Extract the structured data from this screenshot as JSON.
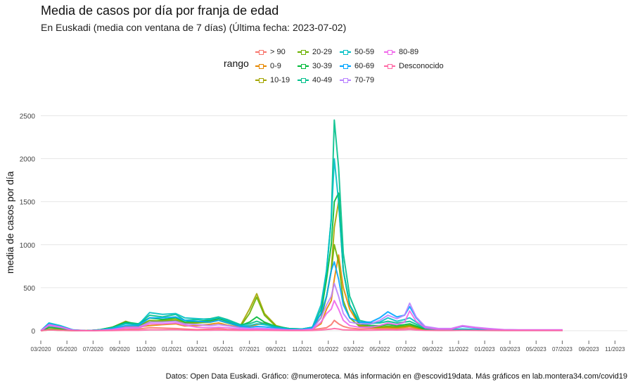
{
  "chart_data": {
    "type": "line",
    "title": "Media de casos por día por franja de edad",
    "subtitle": "En Euskadi (media con ventana de 7 días)  (Última fecha: 2023-07-02)",
    "xlabel": "",
    "ylabel": "media de casos por día",
    "caption": "Datos: Open Data Euskadi. Gráfico: @numeroteca. Más información en @escovid19data.  Más gráficos en lab.montera34.com/covid19",
    "legend_title": "rango",
    "legend_position": "top",
    "grid": true,
    "ylim": [
      0,
      2700
    ],
    "yticks": [
      0,
      500,
      1000,
      1500,
      2000,
      2500
    ],
    "xlim": [
      "2020-03-01",
      "2023-11-30"
    ],
    "xticks": [
      "03/2020",
      "05/2020",
      "07/2020",
      "09/2020",
      "11/2020",
      "01/2021",
      "03/2021",
      "05/2021",
      "07/2021",
      "09/2021",
      "11/2021",
      "01/2022",
      "03/2022",
      "05/2022",
      "07/2022",
      "09/2022",
      "11/2022",
      "01/2023",
      "03/2023",
      "05/2023",
      "07/2023",
      "09/2023",
      "11/2023"
    ],
    "x": [
      "2020-03-01",
      "2020-03-20",
      "2020-04-15",
      "2020-05-15",
      "2020-06-15",
      "2020-07-15",
      "2020-08-15",
      "2020-09-15",
      "2020-10-15",
      "2020-11-10",
      "2020-12-10",
      "2021-01-10",
      "2021-01-31",
      "2021-03-01",
      "2021-04-01",
      "2021-04-20",
      "2021-05-10",
      "2021-06-10",
      "2021-07-01",
      "2021-07-18",
      "2021-08-05",
      "2021-09-01",
      "2021-10-01",
      "2021-11-01",
      "2021-11-25",
      "2021-12-15",
      "2021-12-28",
      "2022-01-08",
      "2022-01-15",
      "2022-01-25",
      "2022-02-05",
      "2022-02-20",
      "2022-03-15",
      "2022-04-10",
      "2022-05-01",
      "2022-05-20",
      "2022-06-10",
      "2022-06-28",
      "2022-07-10",
      "2022-07-25",
      "2022-08-15",
      "2022-09-15",
      "2022-10-15",
      "2022-11-10",
      "2022-12-10",
      "2023-01-10",
      "2023-02-15",
      "2023-03-20",
      "2023-04-20",
      "2023-05-20",
      "2023-06-15",
      "2023-07-02"
    ],
    "series": [
      {
        "name": "> 90",
        "color": "#F8766D",
        "values": [
          0,
          40,
          25,
          8,
          3,
          4,
          8,
          15,
          20,
          35,
          30,
          25,
          20,
          12,
          18,
          25,
          15,
          10,
          8,
          10,
          12,
          10,
          8,
          10,
          15,
          25,
          35,
          70,
          120,
          80,
          50,
          30,
          20,
          25,
          20,
          20,
          18,
          25,
          30,
          20,
          10,
          8,
          8,
          10,
          10,
          8,
          6,
          5,
          5,
          5,
          5,
          5
        ]
      },
      {
        "name": "0-9",
        "color": "#E58700",
        "values": [
          0,
          15,
          10,
          2,
          0,
          3,
          15,
          50,
          45,
          60,
          70,
          80,
          55,
          60,
          75,
          90,
          65,
          40,
          50,
          70,
          90,
          30,
          15,
          12,
          20,
          80,
          250,
          350,
          600,
          880,
          500,
          250,
          60,
          40,
          35,
          35,
          30,
          40,
          50,
          30,
          10,
          8,
          8,
          10,
          8,
          6,
          5,
          4,
          4,
          4,
          4,
          4
        ]
      },
      {
        "name": "10-19",
        "color": "#A3A500",
        "values": [
          0,
          10,
          5,
          1,
          0,
          10,
          40,
          110,
          60,
          100,
          120,
          130,
          90,
          100,
          110,
          140,
          120,
          60,
          250,
          430,
          200,
          60,
          20,
          15,
          30,
          150,
          400,
          700,
          1200,
          1500,
          700,
          300,
          70,
          40,
          40,
          45,
          40,
          50,
          60,
          40,
          15,
          10,
          8,
          10,
          8,
          6,
          5,
          4,
          4,
          4,
          4,
          4
        ]
      },
      {
        "name": "20-29",
        "color": "#6BB100",
        "values": [
          0,
          20,
          15,
          3,
          0,
          10,
          40,
          90,
          60,
          120,
          110,
          120,
          80,
          90,
          100,
          120,
          90,
          50,
          200,
          390,
          180,
          50,
          20,
          15,
          30,
          150,
          400,
          700,
          1000,
          800,
          350,
          150,
          50,
          40,
          45,
          50,
          45,
          55,
          65,
          45,
          15,
          10,
          8,
          10,
          8,
          6,
          5,
          4,
          4,
          4,
          4,
          4
        ]
      },
      {
        "name": "30-39",
        "color": "#00BA38",
        "values": [
          0,
          40,
          30,
          5,
          0,
          10,
          40,
          100,
          80,
          150,
          130,
          150,
          100,
          110,
          120,
          140,
          110,
          60,
          100,
          160,
          100,
          50,
          25,
          20,
          40,
          200,
          600,
          1000,
          1500,
          1600,
          700,
          300,
          80,
          60,
          60,
          70,
          60,
          70,
          80,
          55,
          20,
          12,
          10,
          12,
          10,
          8,
          6,
          5,
          5,
          5,
          5,
          5
        ]
      },
      {
        "name": "40-49",
        "color": "#00C08B",
        "values": [
          0,
          60,
          40,
          8,
          0,
          10,
          35,
          90,
          80,
          180,
          160,
          190,
          120,
          130,
          140,
          160,
          130,
          70,
          80,
          110,
          80,
          50,
          25,
          20,
          40,
          250,
          700,
          1300,
          2450,
          1900,
          900,
          400,
          120,
          90,
          90,
          110,
          90,
          100,
          110,
          75,
          25,
          15,
          12,
          15,
          12,
          10,
          8,
          6,
          6,
          6,
          6,
          6
        ]
      },
      {
        "name": "50-59",
        "color": "#00BFC4",
        "values": [
          0,
          90,
          60,
          10,
          0,
          10,
          30,
          80,
          70,
          210,
          190,
          200,
          150,
          140,
          130,
          150,
          120,
          60,
          60,
          80,
          70,
          40,
          20,
          20,
          40,
          300,
          700,
          1300,
          2000,
          1500,
          700,
          300,
          100,
          80,
          100,
          150,
          110,
          130,
          150,
          100,
          30,
          18,
          15,
          20,
          15,
          12,
          8,
          6,
          6,
          6,
          6,
          6
        ]
      },
      {
        "name": "60-69",
        "color": "#00A5FF",
        "values": [
          0,
          80,
          50,
          8,
          0,
          5,
          20,
          60,
          60,
          150,
          150,
          160,
          120,
          110,
          100,
          120,
          95,
          50,
          40,
          50,
          45,
          30,
          15,
          15,
          30,
          200,
          400,
          700,
          800,
          600,
          300,
          150,
          100,
          100,
          150,
          220,
          160,
          180,
          280,
          150,
          40,
          20,
          20,
          50,
          30,
          20,
          10,
          8,
          8,
          8,
          8,
          8
        ]
      },
      {
        "name": "70-79",
        "color": "#B983FF",
        "values": [
          0,
          60,
          40,
          5,
          0,
          5,
          15,
          40,
          40,
          100,
          100,
          110,
          80,
          70,
          60,
          70,
          60,
          35,
          25,
          30,
          25,
          20,
          10,
          10,
          20,
          150,
          300,
          400,
          550,
          400,
          200,
          100,
          80,
          80,
          120,
          180,
          140,
          180,
          320,
          160,
          50,
          25,
          25,
          60,
          40,
          25,
          12,
          10,
          10,
          10,
          10,
          10
        ]
      },
      {
        "name": "80-89",
        "color": "#F066EA",
        "values": [
          0,
          70,
          45,
          6,
          0,
          4,
          12,
          30,
          30,
          80,
          80,
          90,
          65,
          40,
          35,
          40,
          35,
          20,
          15,
          18,
          15,
          12,
          8,
          8,
          15,
          100,
          200,
          250,
          350,
          250,
          120,
          60,
          40,
          40,
          60,
          90,
          70,
          100,
          230,
          110,
          35,
          18,
          20,
          55,
          35,
          20,
          10,
          8,
          8,
          8,
          8,
          8
        ]
      },
      {
        "name": "Desconocido",
        "color": "#FF67A4",
        "values": [
          0,
          10,
          5,
          1,
          0,
          1,
          2,
          5,
          5,
          10,
          10,
          12,
          8,
          6,
          6,
          8,
          6,
          4,
          4,
          5,
          4,
          3,
          2,
          2,
          3,
          8,
          15,
          20,
          25,
          20,
          10,
          8,
          6,
          6,
          8,
          10,
          8,
          10,
          15,
          8,
          5,
          3,
          3,
          5,
          4,
          3,
          2,
          2,
          2,
          2,
          2,
          2
        ]
      }
    ]
  }
}
